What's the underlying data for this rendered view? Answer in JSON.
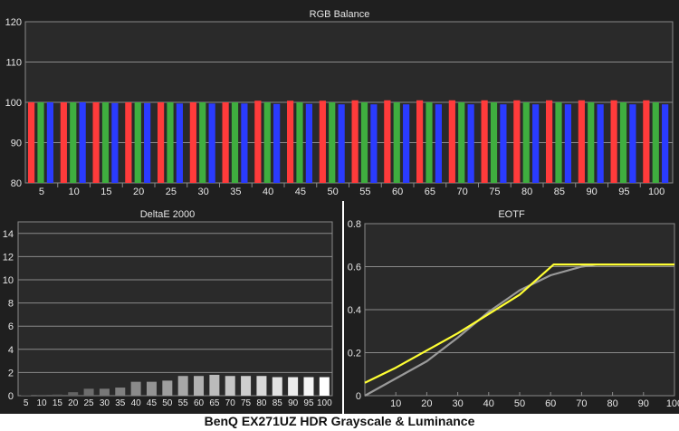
{
  "caption": "BenQ EX271UZ HDR Grayscale & Luminance",
  "chart_data": [
    {
      "type": "bar",
      "title": "RGB Balance",
      "categories": [
        "5",
        "10",
        "15",
        "20",
        "25",
        "30",
        "35",
        "40",
        "45",
        "50",
        "55",
        "60",
        "65",
        "70",
        "75",
        "80",
        "85",
        "90",
        "95",
        "100"
      ],
      "series": [
        {
          "name": "Red",
          "color": "#ff3b3b",
          "values": [
            100,
            100,
            100,
            100,
            100,
            100,
            100,
            100.4,
            100.4,
            100.4,
            100.5,
            100.5,
            100.5,
            100.5,
            100.5,
            100.5,
            100.5,
            100.5,
            100.5,
            100.5
          ]
        },
        {
          "name": "Green",
          "color": "#3fae3f",
          "values": [
            100,
            100,
            100,
            100,
            100,
            100,
            100,
            100,
            100,
            100,
            100,
            100,
            100,
            100,
            100,
            100,
            100,
            100,
            100,
            100
          ]
        },
        {
          "name": "Blue",
          "color": "#2a3bff",
          "values": [
            100,
            100,
            99.8,
            99.8,
            99.7,
            99.7,
            99.7,
            99.6,
            99.6,
            99.5,
            99.5,
            99.5,
            99.5,
            99.5,
            99.5,
            99.5,
            99.5,
            99.5,
            99.5,
            99.5
          ]
        }
      ],
      "ylim": [
        80,
        120
      ],
      "yticks": [
        80,
        90,
        100,
        110,
        120
      ]
    },
    {
      "type": "bar",
      "title": "DeltaE 2000",
      "categories": [
        "5",
        "10",
        "15",
        "20",
        "25",
        "30",
        "35",
        "40",
        "45",
        "50",
        "55",
        "60",
        "65",
        "70",
        "75",
        "80",
        "85",
        "90",
        "95",
        "100"
      ],
      "values": [
        0.05,
        0.08,
        0.1,
        0.3,
        0.6,
        0.6,
        0.7,
        1.2,
        1.2,
        1.3,
        1.7,
        1.7,
        1.8,
        1.7,
        1.7,
        1.7,
        1.6,
        1.6,
        1.6,
        1.6
      ],
      "ylim": [
        0,
        15
      ],
      "yticks": [
        0,
        2,
        4,
        6,
        8,
        10,
        12,
        14
      ]
    },
    {
      "type": "line",
      "title": "EOTF",
      "xlim": [
        0,
        100
      ],
      "ylim": [
        0,
        0.8
      ],
      "xticks": [
        10,
        20,
        30,
        40,
        50,
        60,
        70,
        80,
        90,
        100
      ],
      "yticks": [
        0,
        0.2,
        0.4,
        0.6,
        0.8
      ],
      "series": [
        {
          "color": "#ffff33",
          "x": [
            0,
            10,
            20,
            30,
            40,
            50,
            61,
            70,
            80,
            90,
            100
          ],
          "y": [
            0.06,
            0.13,
            0.21,
            0.29,
            0.38,
            0.47,
            0.61,
            0.61,
            0.61,
            0.61,
            0.61
          ]
        },
        {
          "color": "#9a9a9a",
          "x": [
            0,
            5,
            10,
            20,
            30,
            40,
            50,
            60,
            70,
            75,
            80,
            90,
            100
          ],
          "y": [
            0,
            0.04,
            0.08,
            0.16,
            0.27,
            0.39,
            0.49,
            0.56,
            0.6,
            0.61,
            0.61,
            0.61,
            0.61
          ]
        }
      ]
    }
  ]
}
